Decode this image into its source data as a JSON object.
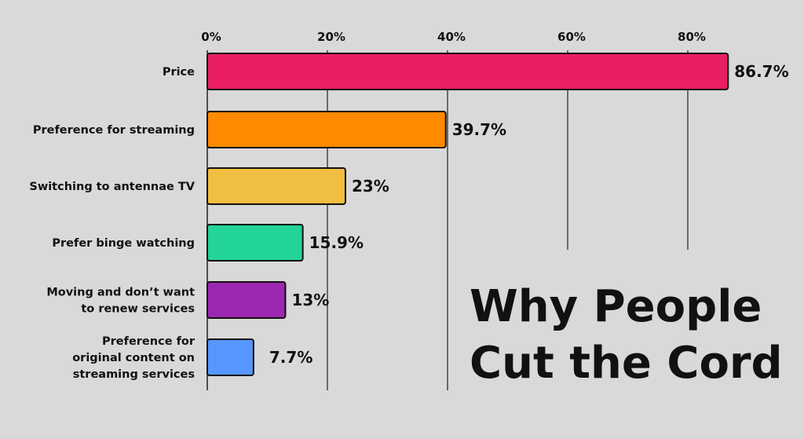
{
  "chart_data": {
    "type": "bar",
    "orientation": "horizontal",
    "title_lines": [
      "Why People",
      "Cut the Cord"
    ],
    "xlim": [
      0,
      100
    ],
    "x_ticks": [
      {
        "value": 0,
        "label": "0%"
      },
      {
        "value": 20,
        "label": "20%"
      },
      {
        "value": 40,
        "label": "40%"
      },
      {
        "value": 60,
        "label": "60%"
      },
      {
        "value": 80,
        "label": "80%"
      }
    ],
    "grid": true,
    "bars": [
      {
        "category_lines": [
          "Price"
        ],
        "value": 86.7,
        "value_label": "86.7%",
        "color": "#e91e63"
      },
      {
        "category_lines": [
          "Preference for streaming"
        ],
        "value": 39.7,
        "value_label": "39.7%",
        "color": "#ff8a00"
      },
      {
        "category_lines": [
          "Switching to antennae TV"
        ],
        "value": 23,
        "value_label": "23%",
        "color": "#f0be40"
      },
      {
        "category_lines": [
          "Prefer binge watching"
        ],
        "value": 15.9,
        "value_label": "15.9%",
        "color": "#22d497"
      },
      {
        "category_lines": [
          "Moving and don’t want",
          "to renew services"
        ],
        "value": 13,
        "value_label": "13%",
        "color": "#9c27b0"
      },
      {
        "category_lines": [
          "Preference for",
          "original content on",
          "streaming services"
        ],
        "value": 7.7,
        "value_label": "7.7%",
        "color": "#5596ff"
      }
    ],
    "colors": {
      "background": "#d9d9d9",
      "gridline": "#222222",
      "bar_outline": "#111111"
    }
  }
}
